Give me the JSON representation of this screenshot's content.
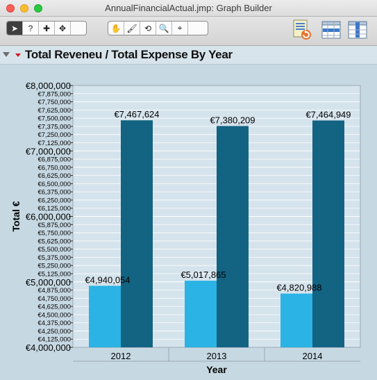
{
  "window": {
    "title": "AnnualFinancialActual.jmp: Graph Builder"
  },
  "toolbar": {
    "tools": [
      {
        "name": "arrow-tool",
        "glyph": "➤"
      },
      {
        "name": "help-tool",
        "glyph": "?"
      },
      {
        "name": "selection-tool",
        "glyph": "✚"
      },
      {
        "name": "crosshair-tool",
        "glyph": "✥"
      },
      {
        "name": "grabber-tool",
        "glyph": "✋"
      },
      {
        "name": "brush-tool",
        "glyph": "🖌"
      },
      {
        "name": "lasso-tool",
        "glyph": "⟲"
      },
      {
        "name": "zoom-tool",
        "glyph": "🔍"
      },
      {
        "name": "annotate-tool",
        "glyph": "⌖"
      }
    ]
  },
  "outline": {
    "title": "Total Reveneu / Total Expense By Year"
  },
  "colors": {
    "revenue": "#2ab3e4",
    "expense": "#136382",
    "plot_bg": "#d5e3ec",
    "grid": "#ffffff"
  },
  "chart_data": {
    "type": "bar",
    "title": "Total Reveneu / Total Expense By Year",
    "xlabel": "Year",
    "ylabel": "Total €",
    "categories": [
      "2012",
      "2013",
      "2014"
    ],
    "series": [
      {
        "values": [
          4940054,
          5017865,
          4820988
        ],
        "labels": [
          "€4,940,054",
          "€5,017,865",
          "€4,820,988"
        ]
      },
      {
        "values": [
          7467624,
          7380209,
          7464949
        ],
        "labels": [
          "€7,467,624",
          "€7,380,209",
          "€7,464,949"
        ]
      }
    ],
    "ylim": [
      4000000,
      8000000
    ],
    "major_ticks": [
      "€4,000,000",
      "€5,000,000",
      "€6,000,000",
      "€7,000,000",
      "€8,000,000"
    ],
    "minor_ticks": [
      "€4,125,000",
      "€4,250,000",
      "€4,375,000",
      "€4,500,000",
      "€4,625,000",
      "€4,750,000",
      "€4,875,000",
      "€5,125,000",
      "€5,250,000",
      "€5,375,000",
      "€5,500,000",
      "€5,625,000",
      "€5,750,000",
      "€5,875,000",
      "€6,125,000",
      "€6,250,000",
      "€6,375,000",
      "€6,500,000",
      "€6,625,000",
      "€6,750,000",
      "€6,875,000",
      "€7,125,000",
      "€7,250,000",
      "€7,375,000",
      "€7,500,000",
      "€7,625,000",
      "€7,750,000",
      "€7,875,000"
    ],
    "grid": true
  }
}
